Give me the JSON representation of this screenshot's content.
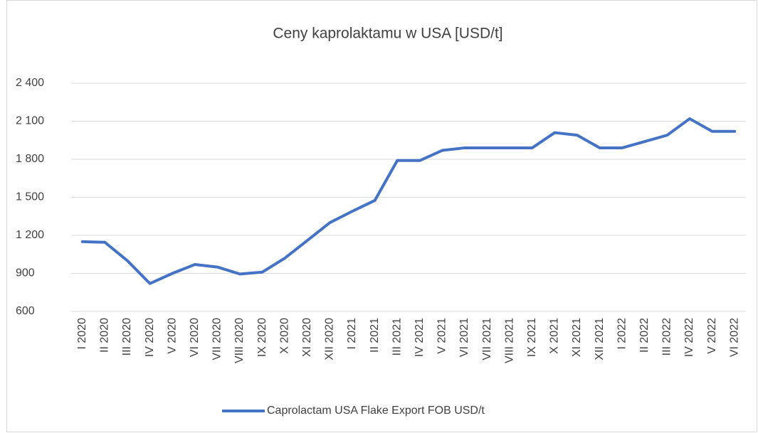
{
  "chart_data": {
    "type": "line",
    "title": "Ceny kaprolaktamu w USA [USD/t]",
    "categories": [
      "I 2020",
      "II 2020",
      "III 2020",
      "IV 2020",
      "V 2020",
      "VI 2020",
      "VII 2020",
      "VIII 2020",
      "IX 2020",
      "X 2020",
      "XI 2020",
      "XII 2020",
      "I 2021",
      "II 2021",
      "III 2021",
      "IV 2021",
      "V 2021",
      "VI 2021",
      "VII 2021",
      "VIII 2021",
      "IX 2021",
      "X 2021",
      "XI 2021",
      "XII 2021",
      "I 2022",
      "II 2022",
      "III 2022",
      "IV 2022",
      "V 2022",
      "VI 2022"
    ],
    "series": [
      {
        "name": "Caprolactam USA Flake Export FOB USD/t",
        "color": "#4472c4",
        "values": [
          1150,
          1145,
          1000,
          820,
          900,
          970,
          950,
          895,
          910,
          1020,
          1160,
          1300,
          1390,
          1475,
          1790,
          1790,
          1870,
          1890,
          1890,
          1890,
          1890,
          2010,
          1990,
          1890,
          1890,
          1940,
          1990,
          2120,
          2020,
          2020
        ]
      }
    ],
    "ylim": [
      600,
      2400
    ],
    "yticks": [
      600,
      900,
      {
        "value": 1200,
        "label": "1 200"
      },
      {
        "value": 1500,
        "label": "1 500"
      },
      {
        "value": 1800,
        "label": "1 800"
      },
      {
        "value": 2100,
        "label": "2 100"
      },
      {
        "value": 2400,
        "label": "2 400"
      }
    ],
    "grid": true,
    "legend": "bottom"
  }
}
